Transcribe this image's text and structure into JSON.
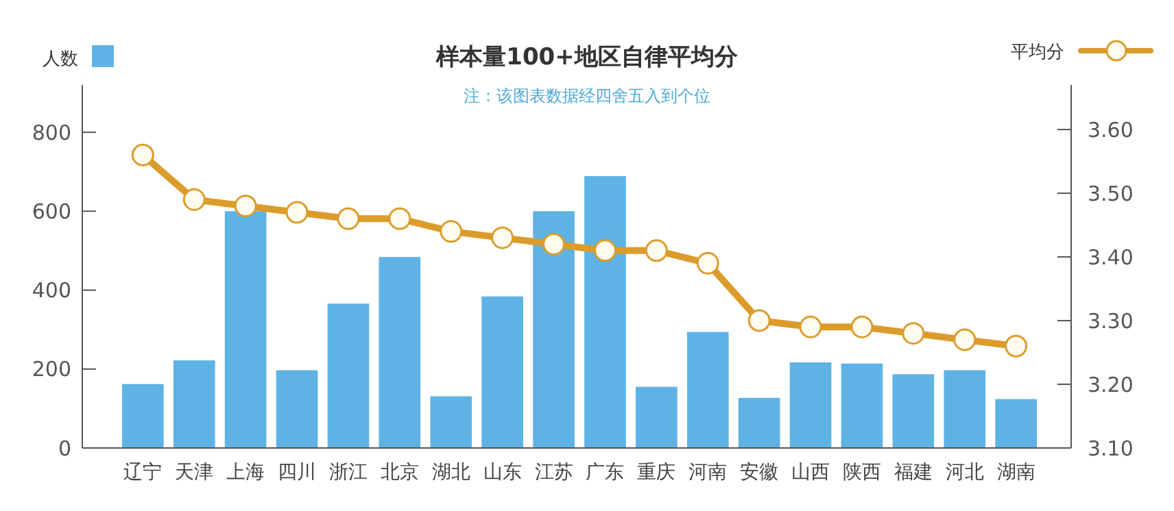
{
  "chart_data": {
    "type": "bar",
    "title": "样本量100+地区自律平均分",
    "subtitle": "注：该图表数据经四舍五入到个位",
    "categories": [
      "辽宁",
      "天津",
      "上海",
      "四川",
      "浙江",
      "北京",
      "湖北",
      "山东",
      "江苏",
      "广东",
      "重庆",
      "河南",
      "安徽",
      "山西",
      "陕西",
      "福建",
      "河北",
      "湖南"
    ],
    "series": [
      {
        "name": "人数",
        "color": "#5eb3e4",
        "values": [
          162,
          222,
          600,
          197,
          366,
          484,
          131,
          384,
          600,
          689,
          155,
          294,
          127,
          217,
          214,
          187,
          197,
          124
        ]
      },
      {
        "name": "平均分",
        "type": "line",
        "axis": "y2",
        "color": "#dc9c2c",
        "marker": "circle",
        "values": [
          3.56,
          3.49,
          3.48,
          3.47,
          3.46,
          3.46,
          3.44,
          3.43,
          3.42,
          3.41,
          3.41,
          3.39,
          3.3,
          3.29,
          3.29,
          3.28,
          3.27,
          3.26
        ]
      }
    ],
    "ylim": [
      0,
      920
    ],
    "yticks": [
      0,
      200,
      400,
      600,
      800
    ],
    "y2lim": [
      3.1,
      3.67
    ],
    "y2ticks": [
      {
        "value": 3.1,
        "label": "3.10"
      },
      {
        "value": 3.2,
        "label": "3.20"
      },
      {
        "value": 3.3,
        "label": "3.30"
      },
      {
        "value": 3.4,
        "label": "3.40"
      },
      {
        "value": 3.5,
        "label": "3.50"
      },
      {
        "value": 3.6,
        "label": "3.60"
      }
    ],
    "legend": "top",
    "grid": false
  }
}
